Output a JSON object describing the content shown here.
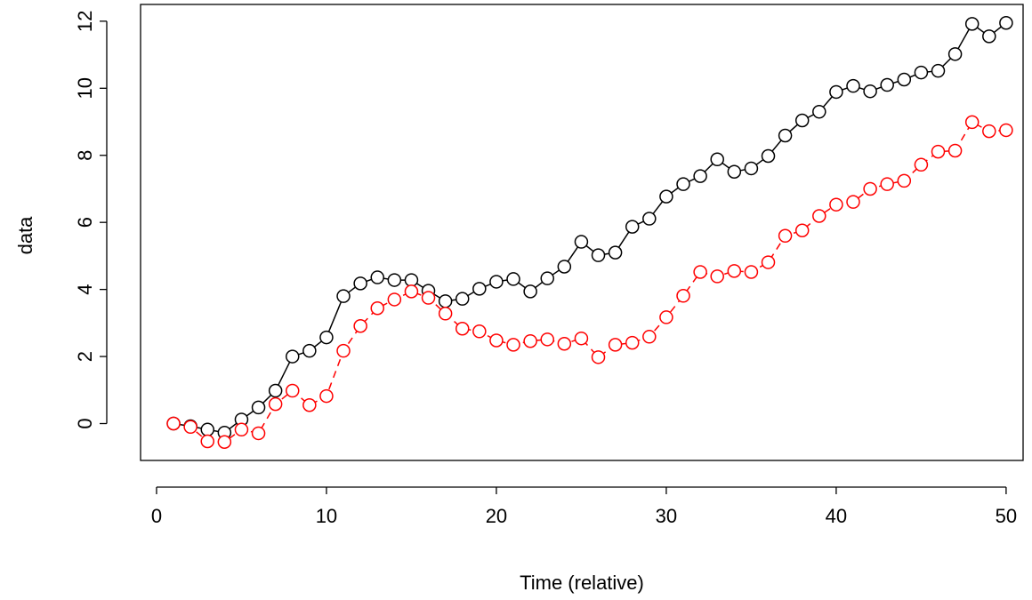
{
  "chart_data": {
    "type": "line",
    "xlabel": "Time (relative)",
    "ylabel": "data",
    "x": [
      1,
      2,
      3,
      4,
      5,
      6,
      7,
      8,
      9,
      10,
      11,
      12,
      13,
      14,
      15,
      16,
      17,
      18,
      19,
      20,
      21,
      22,
      23,
      24,
      25,
      26,
      27,
      28,
      29,
      30,
      31,
      32,
      33,
      34,
      35,
      36,
      37,
      38,
      39,
      40,
      41,
      42,
      43,
      44,
      45,
      46,
      47,
      48,
      49,
      50
    ],
    "series": [
      {
        "color": "#000000",
        "dash": false,
        "values": [
          0,
          -0.08,
          -0.18,
          -0.27,
          0.12,
          0.48,
          0.98,
          2.0,
          2.17,
          2.57,
          3.8,
          4.18,
          4.36,
          4.28,
          4.28,
          3.96,
          3.65,
          3.72,
          4.02,
          4.23,
          4.31,
          3.94,
          4.33,
          4.68,
          5.42,
          5.02,
          5.1,
          5.87,
          6.11,
          6.77,
          7.14,
          7.38,
          7.88,
          7.51,
          7.61,
          7.98,
          8.59,
          9.04,
          9.3,
          9.89,
          10.07,
          9.91,
          10.1,
          10.26,
          10.47,
          10.52,
          11.02,
          11.92,
          11.55,
          11.95
        ]
      },
      {
        "color": "#ff0000",
        "dash": true,
        "values": [
          0,
          -0.1,
          -0.53,
          -0.55,
          -0.18,
          -0.29,
          0.58,
          0.98,
          0.55,
          0.82,
          2.17,
          2.91,
          3.44,
          3.7,
          3.94,
          3.75,
          3.28,
          2.83,
          2.75,
          2.48,
          2.35,
          2.46,
          2.51,
          2.38,
          2.54,
          1.98,
          2.35,
          2.41,
          2.59,
          3.17,
          3.81,
          4.52,
          4.39,
          4.55,
          4.52,
          4.81,
          5.6,
          5.76,
          6.19,
          6.53,
          6.61,
          7.0,
          7.14,
          7.24,
          7.72,
          8.11,
          8.14,
          8.99,
          8.72,
          8.75
        ]
      }
    ],
    "xlim": [
      -0.94,
      51
    ],
    "ylim": [
      -1.1,
      12.5
    ],
    "xticks": [
      0,
      10,
      20,
      30,
      40,
      50
    ],
    "yticks": [
      0,
      2,
      4,
      6,
      8,
      10,
      12
    ]
  }
}
